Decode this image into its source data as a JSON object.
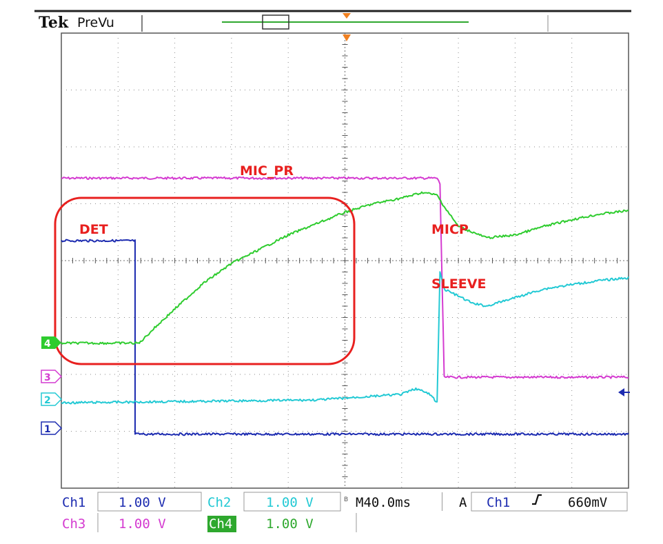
{
  "header": {
    "brand": "Tek",
    "mode": "PreVu"
  },
  "colors": {
    "ch1": "#1c2bb0",
    "ch2": "#22c9d4",
    "ch3": "#d43ad0",
    "ch4": "#2ecc2e",
    "annotation": "#e8201f",
    "grid": "#8a8a8a"
  },
  "status": {
    "ch1": {
      "name": "Ch1",
      "scale": "1.00 V"
    },
    "ch2": {
      "name": "Ch2",
      "scale": "1.00 V"
    },
    "ch3": {
      "name": "Ch3",
      "scale": "1.00 V"
    },
    "ch4": {
      "name": "Ch4",
      "scale": "1.00 V"
    },
    "bw_marker": "B",
    "timebase": "M40.0ms",
    "trigger_mode": "A",
    "trigger_source": "Ch1",
    "trigger_slope_icon": "rising-edge-icon",
    "trigger_level": "660mV"
  },
  "channel_markers": [
    {
      "channel": "4",
      "label": "4"
    },
    {
      "channel": "3",
      "label": "3"
    },
    {
      "channel": "2",
      "label": "2"
    },
    {
      "channel": "1",
      "label": "1"
    }
  ],
  "annotations": {
    "highlight_box": true,
    "labels": [
      "MIC_PR",
      "DET",
      "MICP",
      "SLEEVE"
    ]
  },
  "chart_data": {
    "type": "line",
    "grid": true,
    "x_unit": "ms",
    "x_per_div": 40,
    "x_range": [
      0,
      400
    ],
    "y_unit": "div",
    "y_range": [
      -4,
      4
    ],
    "trigger_time": 200,
    "series": [
      {
        "name": "MIC_PR",
        "channel": "Ch3",
        "points": [
          [
            0,
            1.45
          ],
          [
            265,
            1.45
          ],
          [
            267,
            1.35
          ],
          [
            270,
            -2.05
          ],
          [
            400,
            -2.05
          ]
        ]
      },
      {
        "name": "DET",
        "channel": "Ch1",
        "points": [
          [
            0,
            0.35
          ],
          [
            52,
            0.35
          ],
          [
            52,
            -3.05
          ],
          [
            400,
            -3.05
          ]
        ]
      },
      {
        "name": "MICP",
        "channel": "Ch4",
        "points": [
          [
            0,
            -1.45
          ],
          [
            50,
            -1.45
          ],
          [
            55,
            -1.45
          ],
          [
            65,
            -1.2
          ],
          [
            80,
            -0.85
          ],
          [
            100,
            -0.4
          ],
          [
            120,
            -0.05
          ],
          [
            140,
            0.2
          ],
          [
            160,
            0.45
          ],
          [
            180,
            0.65
          ],
          [
            200,
            0.85
          ],
          [
            220,
            1.0
          ],
          [
            240,
            1.1
          ],
          [
            255,
            1.2
          ],
          [
            265,
            1.15
          ],
          [
            270,
            0.95
          ],
          [
            280,
            0.6
          ],
          [
            300,
            0.4
          ],
          [
            320,
            0.45
          ],
          [
            340,
            0.6
          ],
          [
            360,
            0.72
          ],
          [
            380,
            0.82
          ],
          [
            400,
            0.88
          ]
        ]
      },
      {
        "name": "SLEEVE",
        "channel": "Ch2",
        "points": [
          [
            0,
            -2.5
          ],
          [
            180,
            -2.45
          ],
          [
            210,
            -2.4
          ],
          [
            240,
            -2.35
          ],
          [
            250,
            -2.25
          ],
          [
            260,
            -2.35
          ],
          [
            265,
            -2.5
          ],
          [
            267,
            -0.2
          ],
          [
            270,
            -0.5
          ],
          [
            290,
            -0.75
          ],
          [
            300,
            -0.8
          ],
          [
            320,
            -0.65
          ],
          [
            340,
            -0.5
          ],
          [
            360,
            -0.42
          ],
          [
            380,
            -0.35
          ],
          [
            400,
            -0.3
          ]
        ]
      }
    ]
  }
}
